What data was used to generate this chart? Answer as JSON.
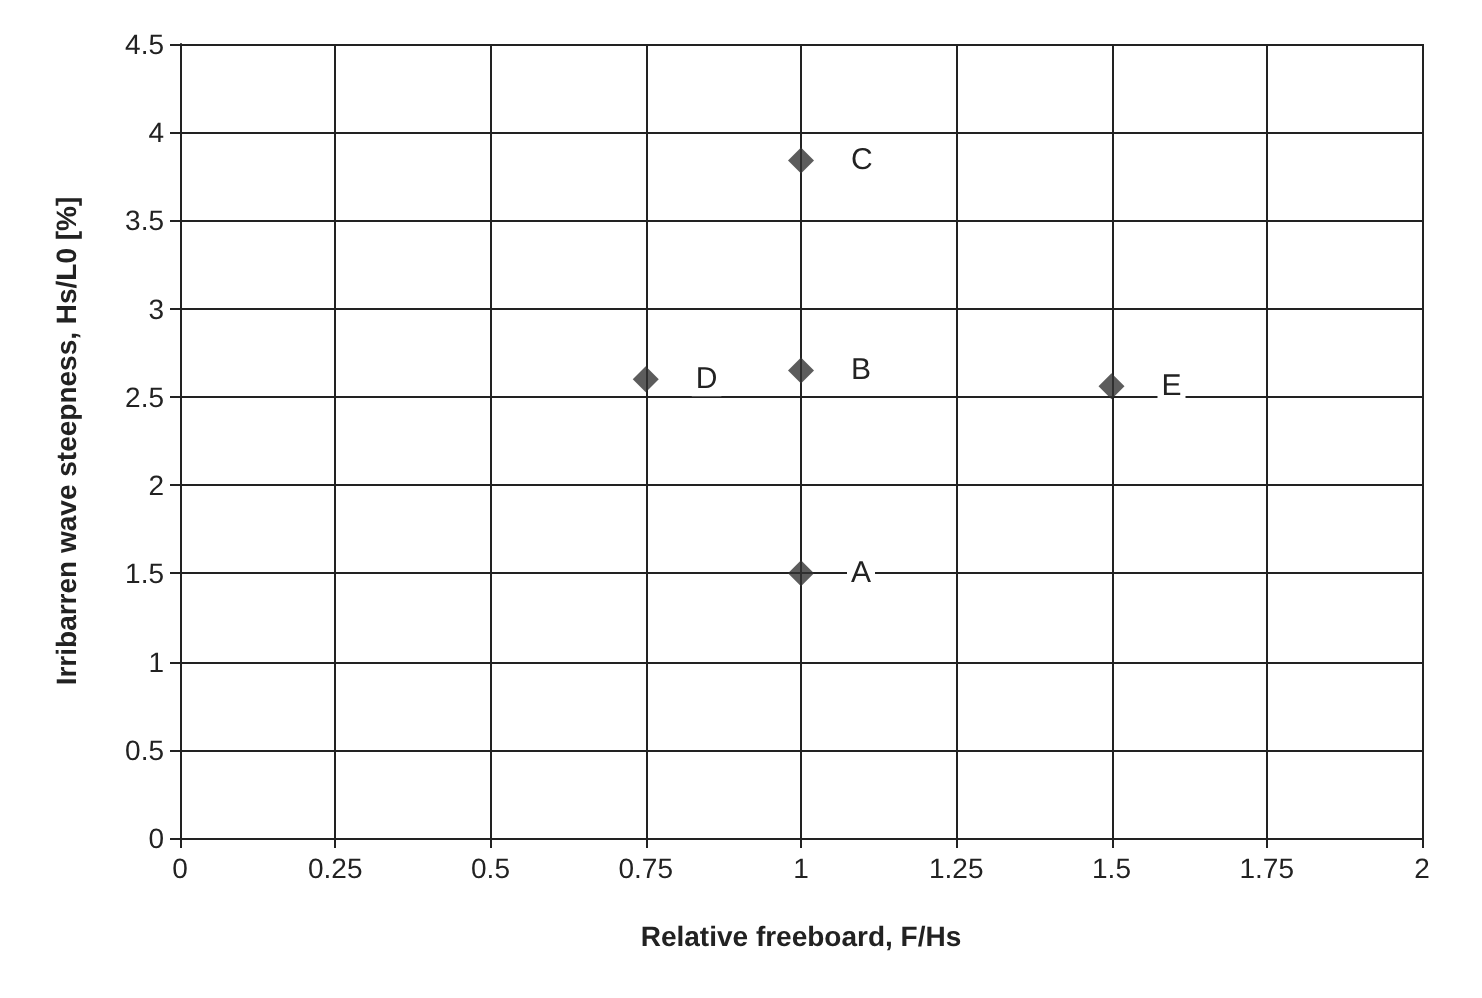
{
  "chart_data": {
    "type": "scatter",
    "xlabel": "Relative freeboard, F/Hs",
    "ylabel": "Irribarren wave steepness, Hs/L0 [%]",
    "x": [
      1.0,
      1.0,
      1.0,
      0.75,
      1.5
    ],
    "series": [
      {
        "color": "#333333",
        "values": [
          1.5,
          2.65,
          3.84,
          2.6,
          2.56
        ]
      }
    ],
    "xlim": [
      0,
      2
    ],
    "xticks": [
      0,
      0.25,
      0.5,
      0.75,
      1,
      1.25,
      1.5,
      1.75,
      2
    ],
    "ylim": [
      0,
      4.5
    ],
    "yticks": [
      0,
      0.5,
      1,
      1.5,
      2,
      2.5,
      3,
      3.5,
      4,
      4.5
    ],
    "grid": true,
    "marker": "diamond",
    "annotations": [
      {
        "text": "A",
        "x": 1.0,
        "y": 1.5
      },
      {
        "text": "B",
        "x": 1.0,
        "y": 2.65
      },
      {
        "text": "C",
        "x": 1.0,
        "y": 3.84
      },
      {
        "text": "D",
        "x": 0.75,
        "y": 2.6
      },
      {
        "text": "E",
        "x": 1.5,
        "y": 2.56
      }
    ]
  }
}
